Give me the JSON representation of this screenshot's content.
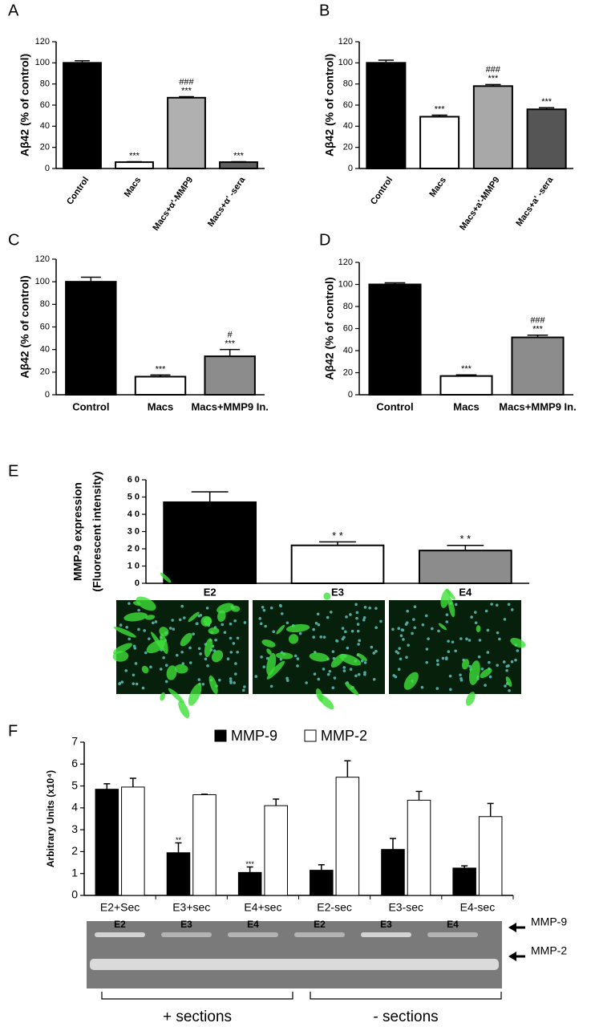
{
  "chart_data": [
    {
      "type": "bar",
      "panel": "A",
      "ylabel": "Aβ42 (% of control)",
      "categories": [
        "Control",
        "Macs",
        "Macs+α'-MMP9",
        "Macs+α' -sera"
      ],
      "values": [
        100,
        6,
        67,
        6
      ],
      "errors": [
        2,
        0.5,
        1,
        0.5
      ],
      "colors": [
        "#000000",
        "#ffffff",
        "#b0b0b0",
        "#606060"
      ],
      "sig_labels": [
        null,
        [
          "***"
        ],
        [
          "###",
          "***"
        ],
        [
          "***"
        ]
      ],
      "ylim": [
        0,
        120
      ],
      "yticks": [
        0,
        20,
        40,
        60,
        80,
        100,
        120
      ]
    },
    {
      "type": "bar",
      "panel": "B",
      "ylabel": "Aβ42 (% of control)",
      "categories": [
        "Control",
        "Macs",
        "Macs+a'-MMP9",
        "Macs+a' -sera"
      ],
      "values": [
        100,
        49,
        78,
        56
      ],
      "errors": [
        2.5,
        1.5,
        1.5,
        1.5
      ],
      "colors": [
        "#000000",
        "#ffffff",
        "#a8a8a8",
        "#555555"
      ],
      "sig_labels": [
        null,
        [
          "***"
        ],
        [
          "###",
          "***"
        ],
        [
          "***"
        ]
      ],
      "ylim": [
        0,
        120
      ],
      "yticks": [
        0,
        20,
        40,
        60,
        80,
        100,
        120
      ]
    },
    {
      "type": "bar",
      "panel": "C",
      "ylabel": "Aβ42 (% of control)",
      "categories": [
        "Control",
        "Macs",
        "Macs+MMP9 In."
      ],
      "values": [
        100,
        16,
        34
      ],
      "errors": [
        4,
        1.5,
        6
      ],
      "colors": [
        "#000000",
        "#ffffff",
        "#8c8c8c"
      ],
      "sig_labels": [
        null,
        [
          "***"
        ],
        [
          "#",
          "***"
        ]
      ],
      "ylim": [
        0,
        120
      ],
      "yticks": [
        0,
        20,
        40,
        60,
        80,
        100,
        120
      ]
    },
    {
      "type": "bar",
      "panel": "D",
      "ylabel": "Aβ42 (% of control)",
      "categories": [
        "Control",
        "Macs",
        "Macs+MMP9 In."
      ],
      "values": [
        100,
        17,
        52
      ],
      "errors": [
        1.5,
        1,
        2
      ],
      "colors": [
        "#000000",
        "#ffffff",
        "#8c8c8c"
      ],
      "sig_labels": [
        null,
        [
          "***"
        ],
        [
          "###",
          "***"
        ]
      ],
      "ylim": [
        0,
        120
      ],
      "yticks": [
        0,
        20,
        40,
        60,
        80,
        100,
        120
      ]
    },
    {
      "type": "bar",
      "panel": "E",
      "ylabel": [
        "MMP-9 expression",
        "(Fluorescent intensity)"
      ],
      "categories": [
        "E2",
        "E3",
        "E4"
      ],
      "values": [
        47,
        22,
        19
      ],
      "errors": [
        6,
        2,
        3
      ],
      "colors": [
        "#000000",
        "#ffffff",
        "#8c8c8c"
      ],
      "sig_labels": [
        null,
        [
          "* *"
        ],
        [
          "* *"
        ]
      ],
      "ylim": [
        0,
        60
      ],
      "yticks": [
        0,
        {
          "value": 10,
          "label": "1 0"
        },
        {
          "value": 20,
          "label": "2 0"
        },
        {
          "value": 30,
          "label": "3 0"
        },
        {
          "value": 40,
          "label": "4 0"
        },
        {
          "value": 50,
          "label": "5 0"
        },
        {
          "value": 60,
          "label": "6 0"
        }
      ]
    },
    {
      "type": "bar",
      "panel": "F",
      "ylabel": "Arbitrary Units (x10⁴)",
      "categories": [
        "E2+Sec",
        "E3+sec",
        "E4+sec",
        "E2-sec",
        "E3-sec",
        "E4-sec"
      ],
      "series": [
        {
          "name": "MMP-9",
          "color": "#000000",
          "values": [
            4.85,
            1.95,
            1.05,
            1.15,
            2.1,
            1.25
          ],
          "errors": [
            0.25,
            0.45,
            0.25,
            0.25,
            0.5,
            0.1
          ],
          "sig_labels": [
            null,
            [
              "**"
            ],
            [
              "***"
            ],
            null,
            null,
            null
          ]
        },
        {
          "name": "MMP-2",
          "color": "#ffffff",
          "values": [
            4.95,
            4.6,
            4.1,
            5.4,
            4.35,
            3.6
          ],
          "errors": [
            0.4,
            0.02,
            0.3,
            0.75,
            0.4,
            0.6
          ],
          "sig_labels": [
            null,
            null,
            null,
            null,
            null,
            null
          ]
        }
      ],
      "ylim": [
        0,
        7
      ],
      "yticks": [
        0,
        1,
        2,
        3,
        4,
        5,
        6,
        7
      ]
    }
  ],
  "gel": {
    "lanes": [
      "E2",
      "E3",
      "E4",
      "E2",
      "E3",
      "E4"
    ],
    "band_labels": [
      "MMP-9",
      "MMP-2"
    ],
    "groups": [
      "+ sections",
      "- sections"
    ]
  }
}
